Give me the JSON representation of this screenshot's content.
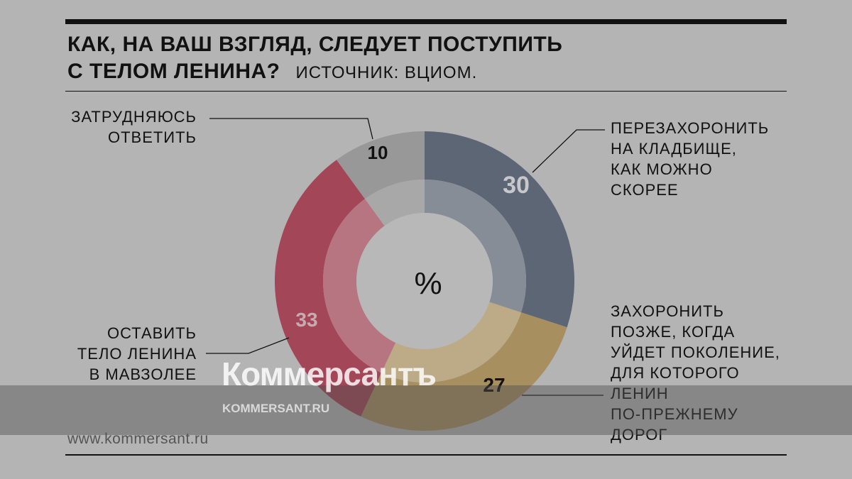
{
  "title_line1": "КАК, НА ВАШ ВЗГЛЯД, СЛЕДУЕТ ПОСТУПИТЬ",
  "title_line2": "С ТЕЛОМ ЛЕНИНА?",
  "source": "ИСТОЧНИК: ВЦИОМ.",
  "watermark": {
    "brand": "Коммерсантъ",
    "url": "KOMMERSANT.RU"
  },
  "footer_site": "www.kommersant.ru",
  "chart_data": {
    "type": "pie",
    "variant": "donut",
    "center_label": "%",
    "slices": [
      {
        "label": "ПЕРЕЗАХОРОНИТЬ НА КЛАДБИЩЕ, КАК МОЖНО СКОРЕЕ",
        "lines": [
          "ПЕРЕЗАХОРОНИТЬ",
          "НА КЛАДБИЩЕ,",
          "КАК МОЖНО",
          "СКОРЕЕ"
        ],
        "value": 30,
        "color": "#5d6674",
        "inner_color": "#878d97",
        "value_color": "#c8c8cc"
      },
      {
        "label": "ЗАХОРОНИТЬ ПОЗЖЕ, КОГДА УЙДЕТ ПОКОЛЕНИЕ, ДЛЯ КОТОРОГО ЛЕНИН ПО-ПРЕЖНЕМУ ДОРОГ",
        "lines": [
          "ЗАХОРОНИТЬ",
          "ПОЗЖЕ, КОГДА",
          "УЙДЕТ ПОКОЛЕНИЕ,",
          "ДЛЯ КОТОРОГО",
          "ЛЕНИН",
          "ПО-ПРЕЖНЕМУ",
          "ДОРОГ"
        ],
        "value": 27,
        "color": "#a88f5f",
        "inner_color": "#bcab86",
        "value_color": "#111111"
      },
      {
        "label": "ОСТАВИТЬ ТЕЛО ЛЕНИНА В МАВЗОЛЕЕ",
        "lines": [
          "ОСТАВИТЬ",
          "ТЕЛО ЛЕНИНА",
          "В МАВЗОЛЕЕ"
        ],
        "value": 33,
        "color": "#a34658",
        "inner_color": "#b67581",
        "value_color": "#c9aab0"
      },
      {
        "label": "ЗАТРУДНЯЮСЬ ОТВЕТИТЬ",
        "lines": [
          "ЗАТРУДНЯЮСЬ",
          "ОТВЕТИТЬ"
        ],
        "value": 10,
        "color": "#989898",
        "inner_color": "#a8a8a8",
        "value_color": "#111111"
      }
    ]
  }
}
